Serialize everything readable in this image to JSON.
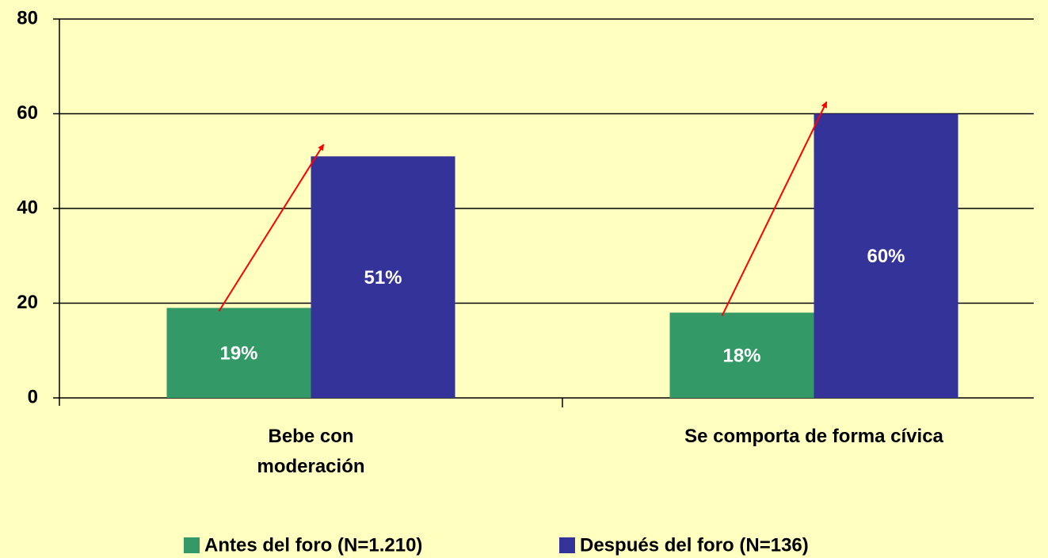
{
  "chart_data": {
    "type": "bar",
    "categories": [
      "Bebe con moderación",
      "Se comporta de forma cívica"
    ],
    "series": [
      {
        "name": "Antes del foro (N=1.210)",
        "color": "#339966",
        "values": [
          19,
          18
        ],
        "value_labels": [
          "19%",
          "18%"
        ]
      },
      {
        "name": "Después del foro (N=136)",
        "color": "#333399",
        "values": [
          51,
          60
        ],
        "value_labels": [
          "51%",
          "60%"
        ]
      }
    ],
    "ylim": [
      0,
      80
    ],
    "yticks": [
      0,
      20,
      40,
      60,
      80
    ],
    "grid": true,
    "legend": "bottom"
  }
}
